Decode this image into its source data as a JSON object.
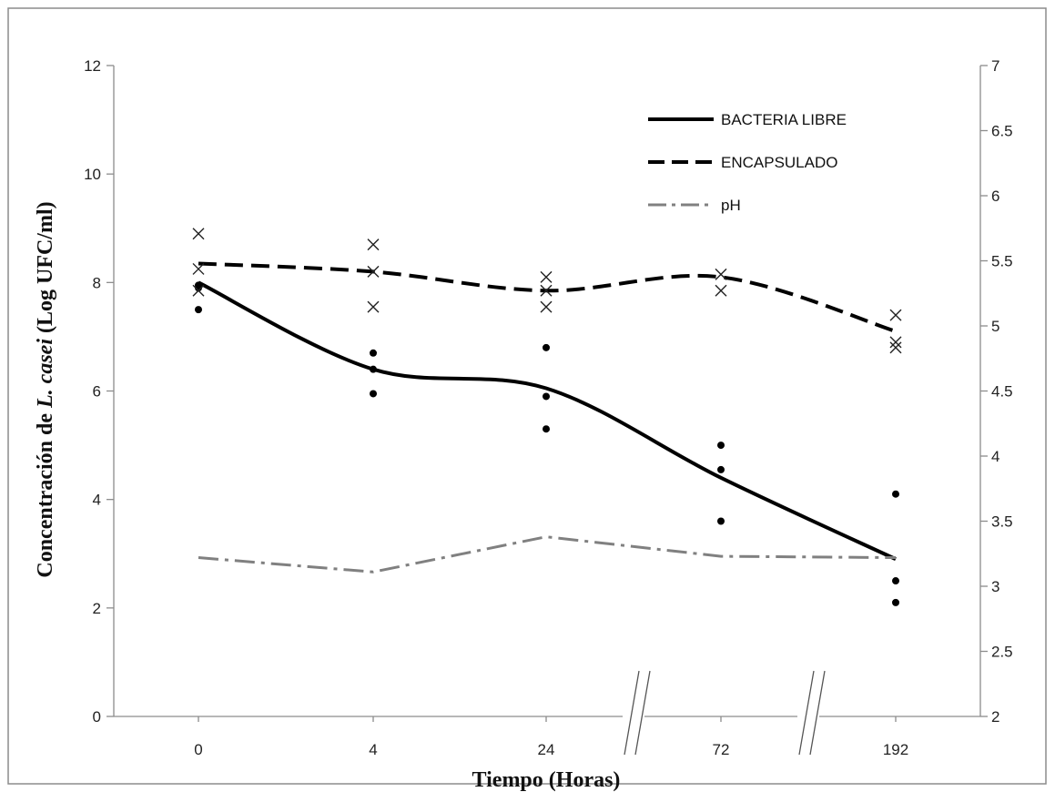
{
  "chart_data": {
    "type": "line",
    "categories": [
      "0",
      "4",
      "24",
      "72",
      "192"
    ],
    "xlabel": "Tiempo (Horas)",
    "ylabel": {
      "prefix": "Concentración de ",
      "italic": "L. casei",
      "suffix": " (Log UFC/ml)"
    },
    "ylim": [
      0,
      12
    ],
    "y_ticks": [
      "0",
      "2",
      "4",
      "6",
      "8",
      "10",
      "12"
    ],
    "y2lim": [
      2,
      7
    ],
    "y2_ticks": [
      "2",
      "2.5",
      "3",
      "3.5",
      "4",
      "4.5",
      "5",
      "5.5",
      "6",
      "6.5",
      "7"
    ],
    "axis_breaks_after": [
      "24",
      "72"
    ],
    "legend_position": "top-right",
    "grid": false,
    "series": [
      {
        "name": "BACTERIA LIBRE",
        "axis": "left",
        "style": "solid",
        "color": "#000000",
        "values": [
          8.0,
          6.4,
          6.05,
          4.4,
          2.9
        ],
        "replicates": [
          [
            7.5,
            7.9,
            7.95
          ],
          [
            5.95,
            6.4,
            6.7
          ],
          [
            5.3,
            5.9,
            6.8
          ],
          [
            3.6,
            4.55,
            5.0
          ],
          [
            2.1,
            2.5,
            4.1
          ]
        ],
        "replicate_marker": "dot"
      },
      {
        "name": "ENCAPSULADO",
        "axis": "left",
        "style": "dashed",
        "color": "#000000",
        "values": [
          8.35,
          8.2,
          7.85,
          8.1,
          7.1
        ],
        "replicates": [
          [
            7.85,
            8.25,
            8.9
          ],
          [
            7.55,
            8.2,
            8.7
          ],
          [
            7.55,
            7.85,
            8.1
          ],
          [
            7.85,
            8.15
          ],
          [
            6.8,
            6.9,
            7.4
          ]
        ],
        "replicate_marker": "x"
      },
      {
        "name": "pH",
        "axis": "right",
        "style": "dashdot",
        "color": "#808080",
        "values": [
          3.22,
          3.11,
          3.38,
          3.23,
          3.22
        ]
      }
    ]
  }
}
